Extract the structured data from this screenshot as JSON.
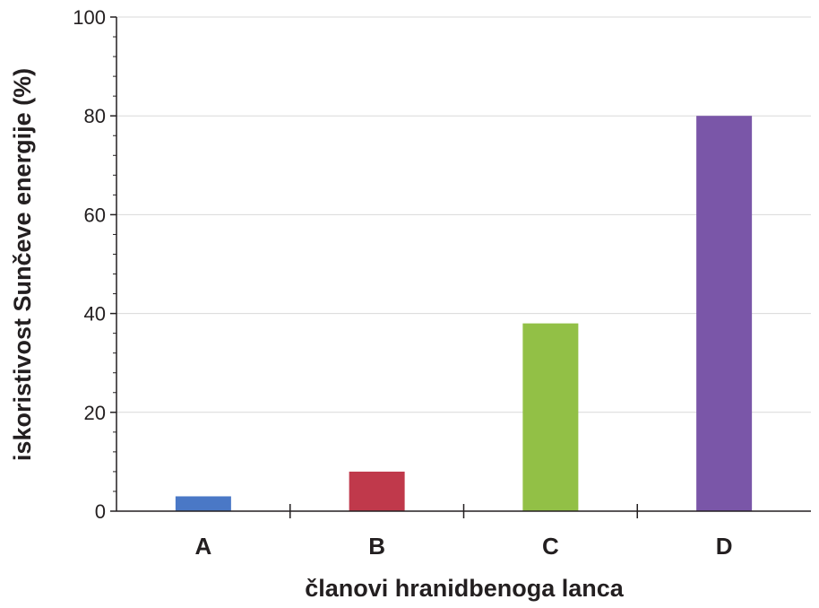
{
  "chart_data": {
    "type": "bar",
    "categories": [
      "A",
      "B",
      "C",
      "D"
    ],
    "values": [
      3,
      8,
      38,
      80
    ],
    "colors": [
      "#4a78c6",
      "#c0394b",
      "#92c046",
      "#7a56a8"
    ],
    "xlabel": "članovi hranidbenoga lanca",
    "ylabel": "iskoristivost Sunčeve energije (%)",
    "ylim": [
      0,
      100
    ],
    "yticks": [
      0,
      20,
      40,
      60,
      80,
      100
    ],
    "grid": true
  }
}
